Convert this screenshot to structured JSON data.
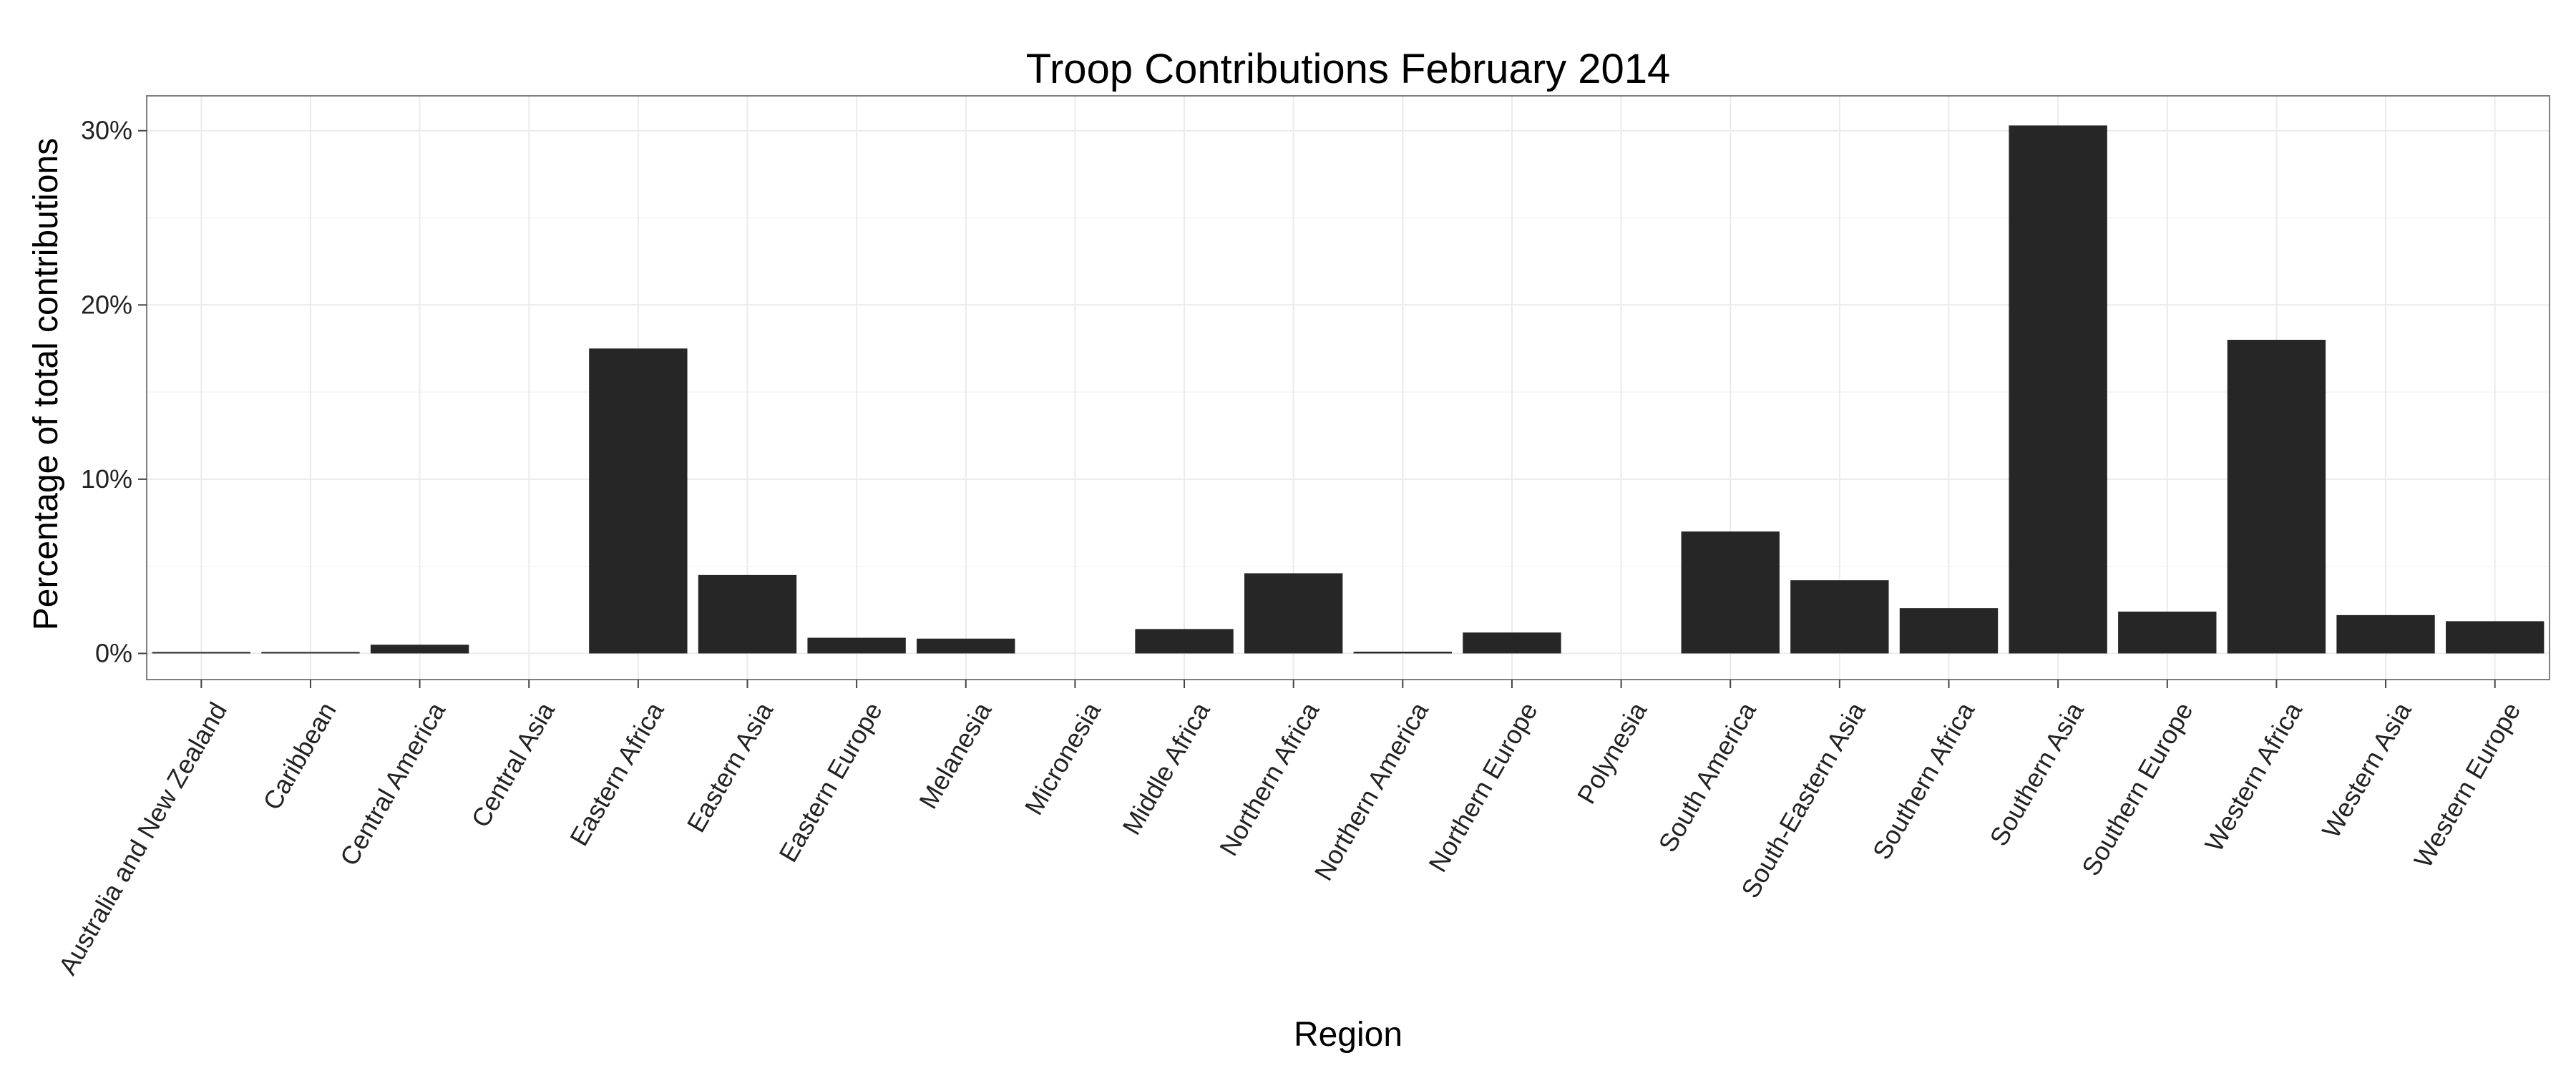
{
  "chart_data": {
    "type": "bar",
    "title": "Troop Contributions February 2014",
    "xlabel": "Region",
    "ylabel": "Percentage of total contributions",
    "categories": [
      "Australia and New Zealand",
      "Caribbean",
      "Central America",
      "Central Asia",
      "Eastern Africa",
      "Eastern Asia",
      "Eastern Europe",
      "Melanesia",
      "Micronesia",
      "Middle Africa",
      "Northern Africa",
      "Northern America",
      "Northern Europe",
      "Polynesia",
      "South America",
      "South-Eastern Asia",
      "Southern Africa",
      "Southern Asia",
      "Southern Europe",
      "Western Africa",
      "Western Asia",
      "Western Europe"
    ],
    "values": [
      0.05,
      0.05,
      0.5,
      0,
      17.5,
      4.5,
      0.9,
      0.85,
      0,
      1.4,
      4.6,
      0.1,
      1.2,
      0,
      7.0,
      4.2,
      2.6,
      30.3,
      2.4,
      18.0,
      2.2,
      1.85
    ],
    "y_ticks": [
      0,
      10,
      20,
      30
    ],
    "y_tick_labels": [
      "0%",
      "10%",
      "20%",
      "30%"
    ],
    "ylim": [
      -1.5,
      32
    ],
    "grid": true,
    "bar_color": "#262626",
    "grid_color": "#ebebeb",
    "panel_border_color": "#7f7f7f"
  }
}
